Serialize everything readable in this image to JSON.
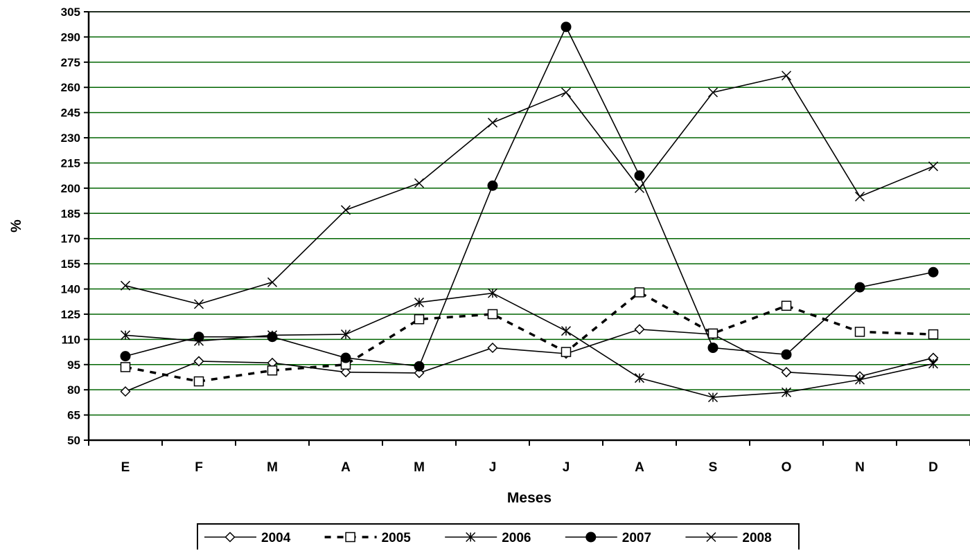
{
  "chart_data": {
    "type": "line",
    "title": "",
    "xlabel": "Meses",
    "ylabel": "%",
    "ylim": [
      50,
      305
    ],
    "yticks": [
      50,
      65,
      80,
      95,
      110,
      125,
      140,
      155,
      170,
      185,
      200,
      215,
      230,
      245,
      260,
      275,
      290,
      305
    ],
    "categories": [
      "E",
      "F",
      "M",
      "A",
      "M",
      "J",
      "J",
      "A",
      "S",
      "O",
      "N",
      "D"
    ],
    "grid": true,
    "grid_color": "#006400",
    "legend_position": "bottom",
    "series": [
      {
        "name": "2004",
        "marker": "diamond-open",
        "line": "solid",
        "values": [
          79,
          97,
          96,
          90.5,
          90,
          105,
          101.5,
          116,
          113,
          90.5,
          88,
          99
        ]
      },
      {
        "name": "2005",
        "marker": "square-open",
        "line": "dashed",
        "values": [
          93.5,
          85,
          91.5,
          95,
          122,
          125,
          102.5,
          138,
          113.5,
          130,
          114.5,
          113
        ]
      },
      {
        "name": "2006",
        "marker": "asterisk",
        "line": "solid",
        "values": [
          112.5,
          109,
          112.5,
          113,
          132,
          137.5,
          115,
          87,
          75.5,
          78.5,
          86,
          95.5
        ]
      },
      {
        "name": "2007",
        "marker": "circle-filled",
        "line": "solid",
        "values": [
          100,
          111.5,
          111.5,
          99,
          94,
          201.5,
          296,
          207.5,
          105,
          101,
          141,
          150
        ]
      },
      {
        "name": "2008",
        "marker": "x",
        "line": "solid",
        "values": [
          142,
          131,
          144,
          187,
          203,
          239,
          257,
          200,
          257,
          267,
          195,
          213
        ]
      }
    ]
  }
}
